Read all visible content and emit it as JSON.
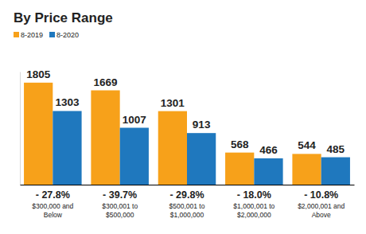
{
  "chart_data": {
    "type": "bar",
    "title": "By Price Range",
    "categories": [
      "$300,000 and\nBelow",
      "$300,001 to\n$500,000",
      "$500,001 to\n$1,000,000",
      "$1,000,001 to\n$2,000,000",
      "$2,000,001 and\nAbove"
    ],
    "series": [
      {
        "name": "8-2019",
        "color": "#f7a11a",
        "values": [
          1805,
          1669,
          1301,
          568,
          544
        ]
      },
      {
        "name": "8-2020",
        "color": "#1f78be",
        "values": [
          1303,
          1007,
          913,
          466,
          485
        ]
      }
    ],
    "annotations": [
      "- 27.8%",
      "- 39.7%",
      "- 29.8%",
      "- 18.0%",
      "- 10.8%"
    ],
    "ylim": [
      0,
      2000
    ],
    "data_labels": true,
    "legend": "top-left",
    "tick_labels": "x",
    "grid": false
  }
}
